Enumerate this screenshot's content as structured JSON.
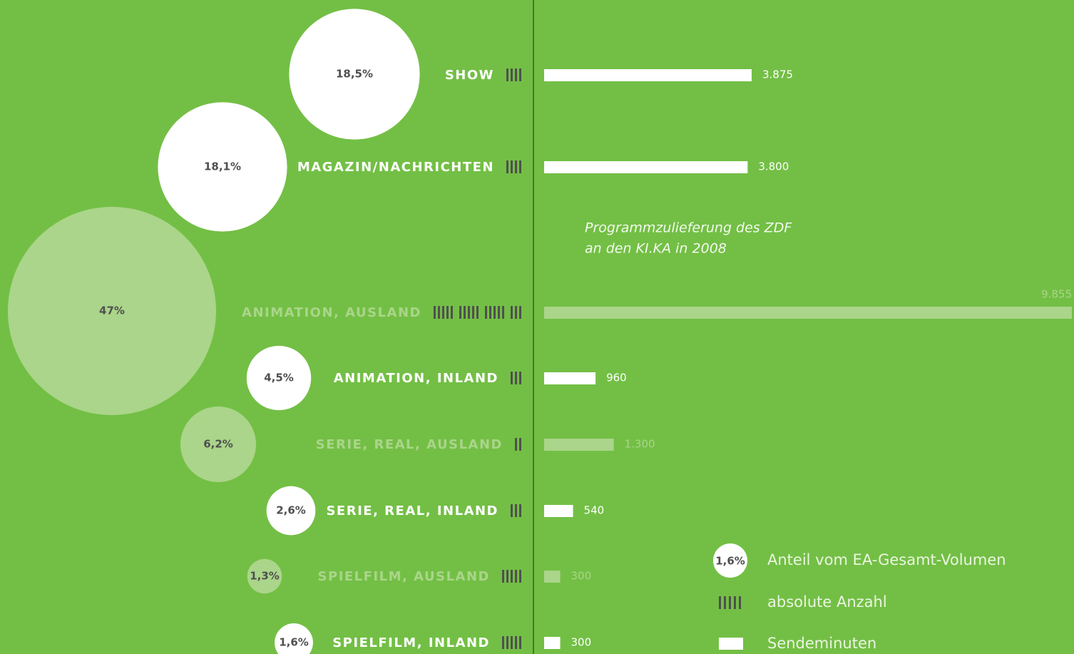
{
  "chart_data": {
    "type": "bubble-bar",
    "annotation": [
      "Programmzulieferung des ZDF",
      "an den KI.KA in 2008"
    ],
    "categories": [
      "SHOW",
      "MAGAZIN/NACHRICHTEN",
      "ANIMATION, AUSLAND",
      "ANIMATION, INLAND",
      "SERIE, REAL, AUSLAND",
      "SERIE, REAL, INLAND",
      "SPIELFILM, AUSLAND",
      "SPIELFILM, INLAND"
    ],
    "colors": [
      "#ffffff",
      "#ffffff",
      "#aad58a",
      "#ffffff",
      "#aad58a",
      "#ffffff",
      "#aad58a",
      "#ffffff"
    ],
    "series": [
      {
        "name": "Anteil vom EA-Gesamt-Volumen",
        "values": [
          18.5,
          18.1,
          47,
          4.5,
          6.2,
          2.6,
          1.3,
          1.6
        ],
        "value_labels": [
          "18,5%",
          "18,1%",
          "47%",
          "4,5%",
          "6,2%",
          "2,6%",
          "1,3%",
          "1,6%"
        ]
      },
      {
        "name": "absolute Anzahl",
        "values": [
          4,
          4,
          18,
          3,
          2,
          3,
          5,
          5
        ]
      },
      {
        "name": "Sendeminuten",
        "values": [
          3875,
          3800,
          9855,
          960,
          1300,
          540,
          300,
          300
        ],
        "value_labels": [
          "3.875",
          "3.800",
          "9.855",
          "960",
          "1.300",
          "540",
          "300",
          "300"
        ]
      }
    ],
    "xlim": [
      0,
      9855
    ],
    "legend_sample_label": "1,6%"
  }
}
